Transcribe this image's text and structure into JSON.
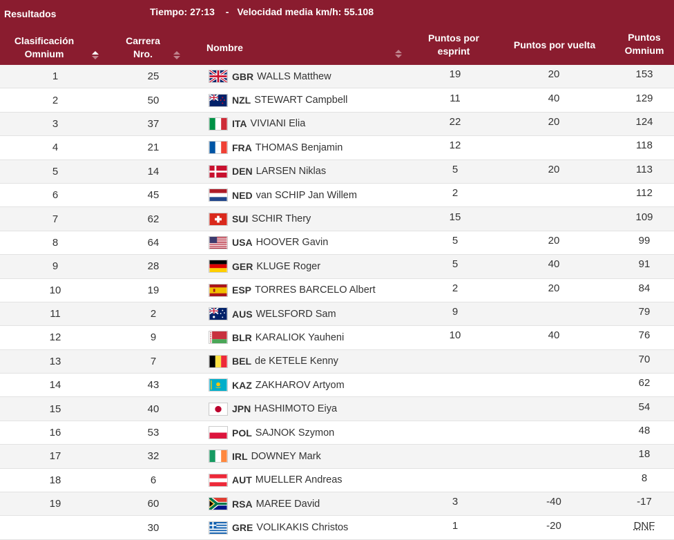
{
  "topbar": {
    "title": "Resultados",
    "time_label": "Tiempo: 27:13",
    "separator": "-",
    "speed_label": "Velocidad media km/h: 55.108"
  },
  "columns": {
    "rank": "Clasificación Omnium",
    "bib": "Carrera Nro.",
    "name": "Nombre",
    "sprint": "Puntos por esprint",
    "lap": "Puntos por vuelta",
    "total": "Puntos Omnium"
  },
  "rows": [
    {
      "rank": "1",
      "bib": "25",
      "noc": "GBR",
      "flag": "gbr-flag-icon",
      "name": "WALLS Matthew",
      "sprint": "19",
      "lap": "20",
      "total": "153"
    },
    {
      "rank": "2",
      "bib": "50",
      "noc": "NZL",
      "flag": "nzl-flag-icon",
      "name": "STEWART Campbell",
      "sprint": "11",
      "lap": "40",
      "total": "129"
    },
    {
      "rank": "3",
      "bib": "37",
      "noc": "ITA",
      "flag": "ita-flag-icon",
      "name": "VIVIANI Elia",
      "sprint": "22",
      "lap": "20",
      "total": "124"
    },
    {
      "rank": "4",
      "bib": "21",
      "noc": "FRA",
      "flag": "fra-flag-icon",
      "name": "THOMAS Benjamin",
      "sprint": "12",
      "lap": "",
      "total": "118"
    },
    {
      "rank": "5",
      "bib": "14",
      "noc": "DEN",
      "flag": "den-flag-icon",
      "name": "LARSEN Niklas",
      "sprint": "5",
      "lap": "20",
      "total": "113"
    },
    {
      "rank": "6",
      "bib": "45",
      "noc": "NED",
      "flag": "ned-flag-icon",
      "name": "van SCHIP Jan Willem",
      "sprint": "2",
      "lap": "",
      "total": "112"
    },
    {
      "rank": "7",
      "bib": "62",
      "noc": "SUI",
      "flag": "sui-flag-icon",
      "name": "SCHIR Thery",
      "sprint": "15",
      "lap": "",
      "total": "109"
    },
    {
      "rank": "8",
      "bib": "64",
      "noc": "USA",
      "flag": "usa-flag-icon",
      "name": "HOOVER Gavin",
      "sprint": "5",
      "lap": "20",
      "total": "99"
    },
    {
      "rank": "9",
      "bib": "28",
      "noc": "GER",
      "flag": "ger-flag-icon",
      "name": "KLUGE Roger",
      "sprint": "5",
      "lap": "40",
      "total": "91"
    },
    {
      "rank": "10",
      "bib": "19",
      "noc": "ESP",
      "flag": "esp-flag-icon",
      "name": "TORRES BARCELO Albert",
      "sprint": "2",
      "lap": "20",
      "total": "84"
    },
    {
      "rank": "11",
      "bib": "2",
      "noc": "AUS",
      "flag": "aus-flag-icon",
      "name": "WELSFORD Sam",
      "sprint": "9",
      "lap": "",
      "total": "79"
    },
    {
      "rank": "12",
      "bib": "9",
      "noc": "BLR",
      "flag": "blr-flag-icon",
      "name": "KARALIOK Yauheni",
      "sprint": "10",
      "lap": "40",
      "total": "76"
    },
    {
      "rank": "13",
      "bib": "7",
      "noc": "BEL",
      "flag": "bel-flag-icon",
      "name": "de KETELE Kenny",
      "sprint": "",
      "lap": "",
      "total": "70"
    },
    {
      "rank": "14",
      "bib": "43",
      "noc": "KAZ",
      "flag": "kaz-flag-icon",
      "name": "ZAKHAROV Artyom",
      "sprint": "",
      "lap": "",
      "total": "62"
    },
    {
      "rank": "15",
      "bib": "40",
      "noc": "JPN",
      "flag": "jpn-flag-icon",
      "name": "HASHIMOTO Eiya",
      "sprint": "",
      "lap": "",
      "total": "54"
    },
    {
      "rank": "16",
      "bib": "53",
      "noc": "POL",
      "flag": "pol-flag-icon",
      "name": "SAJNOK Szymon",
      "sprint": "",
      "lap": "",
      "total": "48"
    },
    {
      "rank": "17",
      "bib": "32",
      "noc": "IRL",
      "flag": "irl-flag-icon",
      "name": "DOWNEY Mark",
      "sprint": "",
      "lap": "",
      "total": "18"
    },
    {
      "rank": "18",
      "bib": "6",
      "noc": "AUT",
      "flag": "aut-flag-icon",
      "name": "MUELLER Andreas",
      "sprint": "",
      "lap": "",
      "total": "8"
    },
    {
      "rank": "19",
      "bib": "60",
      "noc": "RSA",
      "flag": "rsa-flag-icon",
      "name": "MAREE David",
      "sprint": "3",
      "lap": "-40",
      "total": "-17"
    },
    {
      "rank": "",
      "bib": "30",
      "noc": "GRE",
      "flag": "gre-flag-icon",
      "name": "VOLIKAKIS Christos",
      "sprint": "1",
      "lap": "-20",
      "total": "DNF"
    }
  ],
  "colors": {
    "header_bg": "#8a1c2f",
    "row_alt": "#f4f4f4",
    "text": "#333333"
  }
}
